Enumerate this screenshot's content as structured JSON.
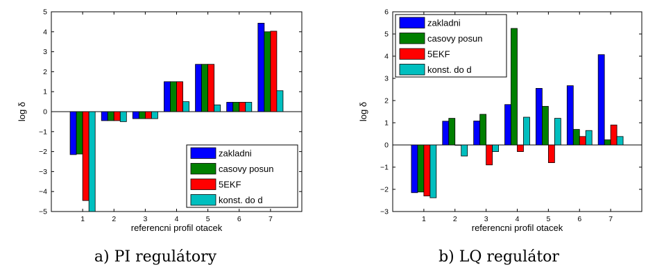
{
  "chart_data": [
    {
      "type": "bar",
      "caption": "a) PI regulátory",
      "xlabel": "referencni profil otacek",
      "ylabel": "log δ",
      "categories": [
        "1",
        "2",
        "3",
        "4",
        "5",
        "6",
        "7"
      ],
      "ylim": [
        -5,
        5
      ],
      "yticks": [
        -5,
        -4,
        -3,
        -2,
        -1,
        0,
        1,
        2,
        3,
        4,
        5
      ],
      "legend_position": "bottom-right",
      "series": [
        {
          "name": "zakladni",
          "color": "#0000ff",
          "values": [
            -2.15,
            -0.45,
            -0.35,
            1.5,
            2.37,
            0.47,
            4.43
          ]
        },
        {
          "name": "casovy posun",
          "color": "#007f00",
          "values": [
            -2.12,
            -0.45,
            -0.35,
            1.5,
            2.37,
            0.47,
            4.0
          ]
        },
        {
          "name": "5EKF",
          "color": "#ff0000",
          "values": [
            -4.45,
            -0.45,
            -0.35,
            1.5,
            2.37,
            0.47,
            4.03
          ]
        },
        {
          "name": "konst. do d",
          "color": "#00bfbf",
          "values": [
            -5.0,
            -0.5,
            -0.35,
            0.5,
            0.34,
            0.47,
            1.05
          ]
        }
      ]
    },
    {
      "type": "bar",
      "caption": "b) LQ regulátor",
      "xlabel": "referencni profil otacek",
      "ylabel": "log δ",
      "categories": [
        "1",
        "2",
        "3",
        "4",
        "5",
        "6",
        "7"
      ],
      "ylim": [
        -3,
        6
      ],
      "yticks": [
        -3,
        -2,
        -1,
        0,
        1,
        2,
        3,
        4,
        5,
        6
      ],
      "legend_position": "top-left",
      "series": [
        {
          "name": "zakladni",
          "color": "#0000ff",
          "values": [
            -2.15,
            1.07,
            1.08,
            1.82,
            2.55,
            2.67,
            4.07
          ]
        },
        {
          "name": "casovy posun",
          "color": "#007f00",
          "values": [
            -2.12,
            1.2,
            1.38,
            5.25,
            1.74,
            0.7,
            0.23
          ]
        },
        {
          "name": "5EKF",
          "color": "#ff0000",
          "values": [
            -2.3,
            0.0,
            -0.9,
            -0.3,
            -0.8,
            0.38,
            0.9
          ]
        },
        {
          "name": "konst. do d",
          "color": "#00bfbf",
          "values": [
            -2.38,
            -0.5,
            -0.3,
            1.25,
            1.2,
            0.65,
            0.38
          ]
        }
      ]
    }
  ]
}
